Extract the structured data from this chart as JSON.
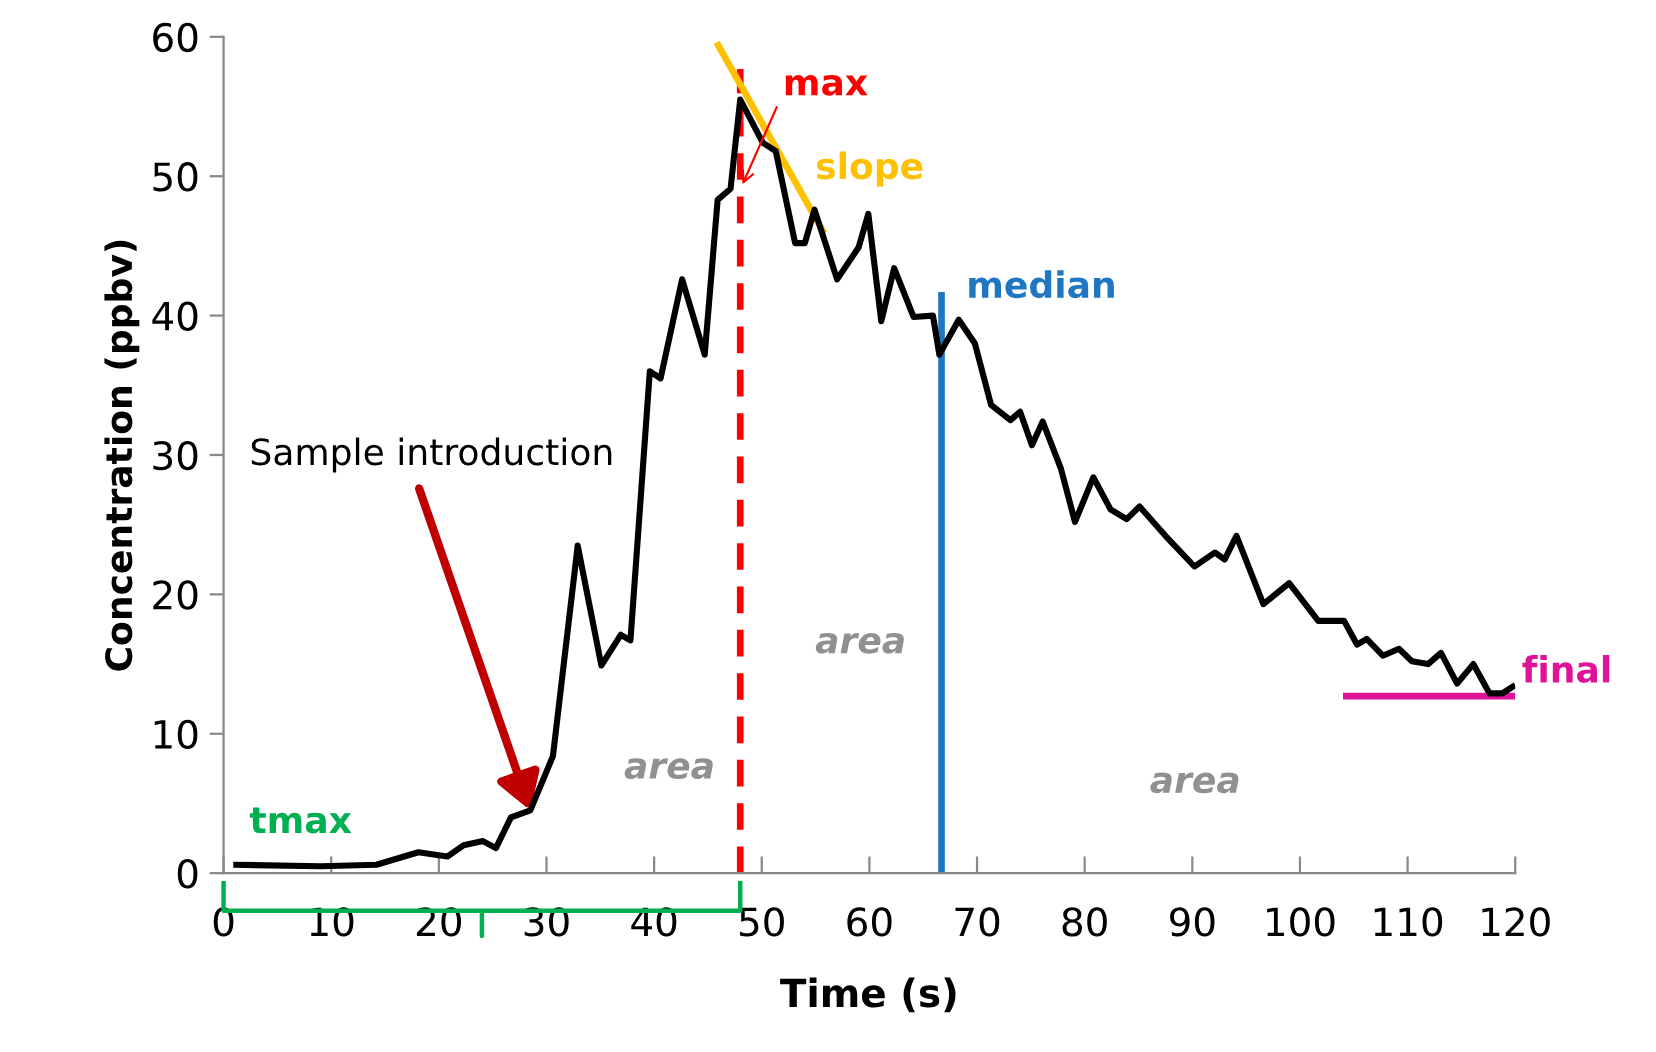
{
  "chart_data": {
    "type": "line",
    "xlabel": "Time (s)",
    "ylabel": "Concentration (ppbv)",
    "xlim": [
      0,
      120
    ],
    "ylim": [
      0,
      60
    ],
    "xticks": [
      0,
      10,
      20,
      30,
      40,
      50,
      60,
      70,
      80,
      90,
      100,
      110,
      120
    ],
    "yticks": [
      0,
      10,
      20,
      30,
      40,
      50,
      60
    ],
    "grid": false,
    "legend": false,
    "marker": "none",
    "series": [
      {
        "color": "#000000",
        "line_style": "solid",
        "x": [
          0.9,
          9.0,
          14.2,
          18.1,
          20.8,
          22.3,
          24.1,
          25.3,
          26.7,
          28.5,
          30.6,
          32.9,
          35.1,
          36.9,
          37.8,
          39.6,
          40.6,
          42.6,
          44.7,
          45.9,
          47.1,
          48.0,
          50.1,
          51.3,
          53.1,
          54.0,
          54.9,
          57.0,
          59.0,
          59.9,
          61.1,
          62.3,
          64.1,
          65.9,
          66.5,
          68.3,
          69.8,
          71.3,
          73.1,
          74.0,
          75.1,
          76.1,
          77.8,
          79.1,
          80.8,
          82.4,
          83.9,
          85.1,
          87.5,
          90.2,
          92.1,
          93.0,
          94.1,
          96.6,
          99.0,
          101.7,
          104.1,
          105.3,
          106.2,
          107.7,
          109.2,
          110.4,
          111.9,
          113.1,
          114.6,
          116.1,
          117.6,
          118.8,
          120.0
        ],
        "values": [
          0.6,
          0.5,
          0.6,
          1.5,
          1.2,
          2.0,
          2.3,
          1.8,
          4.0,
          4.5,
          8.4,
          23.5,
          14.9,
          17.1,
          16.7,
          36.0,
          35.5,
          42.6,
          37.2,
          48.3,
          49.1,
          55.5,
          52.4,
          51.8,
          45.2,
          45.2,
          47.6,
          42.6,
          44.9,
          47.3,
          39.6,
          43.4,
          39.9,
          40.0,
          37.2,
          39.7,
          38.0,
          33.6,
          32.5,
          33.1,
          30.7,
          32.4,
          29.0,
          25.2,
          28.4,
          26.1,
          25.4,
          26.3,
          24.2,
          22.0,
          23.0,
          22.5,
          24.2,
          19.3,
          20.8,
          18.1,
          18.1,
          16.4,
          16.8,
          15.6,
          16.1,
          15.2,
          15.0,
          15.8,
          13.6,
          15.0,
          12.9,
          12.9,
          13.5
        ]
      },
      {
        "color": "#ff0000",
        "line_style": "dashed",
        "x": [
          48,
          48
        ],
        "values": [
          0,
          57.7
        ]
      },
      {
        "color": "#1f77c4",
        "line_style": "solid",
        "x": [
          66.7,
          66.7
        ],
        "values": [
          0,
          41.7
        ]
      },
      {
        "color": "#ffc000",
        "line_style": "solid",
        "x": [
          45.8,
          55.8
        ],
        "values": [
          59.6,
          45.9
        ]
      },
      {
        "color": "#e0129a",
        "line_style": "solid",
        "x": [
          104,
          120
        ],
        "values": [
          12.7,
          12.7
        ]
      }
    ],
    "annotations": [
      "max",
      "slope",
      "median",
      "final",
      {
        "text": "Sample introduction",
        "x": 28.5,
        "y": 4.5
      },
      "area",
      "area",
      "area",
      "tmax"
    ]
  }
}
